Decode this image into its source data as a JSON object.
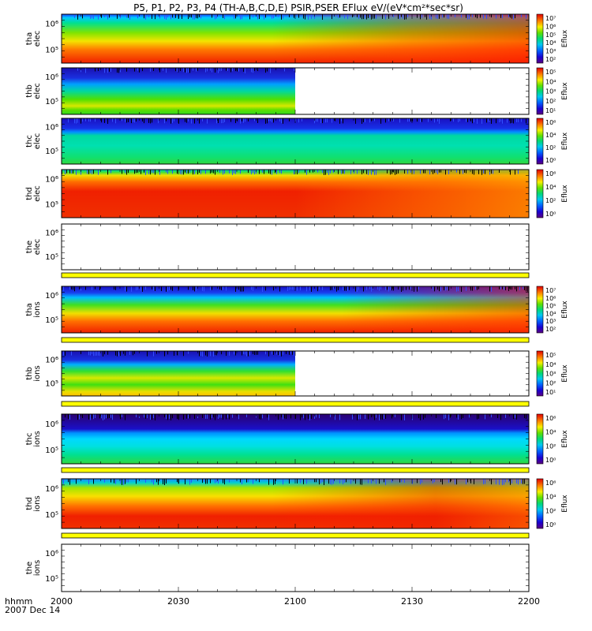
{
  "chart_data": {
    "type": "heatmap",
    "title": "P5, P1, P2, P3, P4 (TH-A,B,C,D,E) PSIR,PSER EFlux eV/(eV*cm²*sec*sr)",
    "x_label_top": "hhmm",
    "x_label_bottom": "2007 Dec 14",
    "x_ticks": [
      "2000",
      "2030",
      "2100",
      "2130",
      "2200"
    ],
    "xlim": [
      "2000",
      "2200"
    ],
    "colorbar_label": "Eflux",
    "panels": [
      {
        "name": "tha elec",
        "label_top": "tha",
        "label_bottom": "elec",
        "ytick_labels": [
          "10⁶",
          "10⁵"
        ],
        "cb_ticks": [
          "10⁷",
          "10⁶",
          "10⁵",
          "10⁴",
          "10³",
          "10²"
        ],
        "data_coverage": [
          0,
          1
        ],
        "has_colorbar": true,
        "state_bar": false
      },
      {
        "name": "thb elec",
        "label_top": "thb",
        "label_bottom": "elec",
        "ytick_labels": [
          "10⁶",
          "10⁵"
        ],
        "cb_ticks": [
          "10⁵",
          "10⁴",
          "10³",
          "10²",
          "10¹"
        ],
        "data_coverage": [
          0,
          0.5
        ],
        "has_colorbar": true,
        "state_bar": false
      },
      {
        "name": "thc elec",
        "label_top": "thc",
        "label_bottom": "elec",
        "ytick_labels": [
          "10⁶",
          "10⁵"
        ],
        "cb_ticks": [
          "10⁶",
          "10⁴",
          "10²",
          "10⁰"
        ],
        "data_coverage": [
          0,
          1
        ],
        "has_colorbar": true,
        "state_bar": false
      },
      {
        "name": "thd elec",
        "label_top": "thd",
        "label_bottom": "elec",
        "ytick_labels": [
          "10⁶",
          "10⁵"
        ],
        "cb_ticks": [
          "10⁶",
          "10⁴",
          "10²",
          "10⁰"
        ],
        "data_coverage": [
          0,
          1
        ],
        "has_colorbar": true,
        "state_bar": false
      },
      {
        "name": "the elec",
        "label_top": "the",
        "label_bottom": "elec",
        "ytick_labels": [
          "10⁶",
          "10⁵"
        ],
        "cb_ticks": [],
        "data_coverage": [
          0,
          0
        ],
        "has_colorbar": false,
        "state_bar": true
      },
      {
        "name": "tha ions",
        "label_top": "tha",
        "label_bottom": "ions",
        "ytick_labels": [
          "10⁶",
          "10⁵"
        ],
        "cb_ticks": [
          "10⁷",
          "10⁶",
          "10⁵",
          "10⁴",
          "10³",
          "10²"
        ],
        "data_coverage": [
          0,
          1
        ],
        "has_colorbar": true,
        "state_bar": true
      },
      {
        "name": "thb ions",
        "label_top": "thb",
        "label_bottom": "ions",
        "ytick_labels": [
          "10⁶",
          "10⁵"
        ],
        "cb_ticks": [
          "10⁵",
          "10⁴",
          "10³",
          "10²",
          "10¹"
        ],
        "data_coverage": [
          0,
          0.5
        ],
        "has_colorbar": true,
        "state_bar": true
      },
      {
        "name": "thc ions",
        "label_top": "thc",
        "label_bottom": "ions",
        "ytick_labels": [
          "10⁶",
          "10⁵"
        ],
        "cb_ticks": [
          "10⁶",
          "10⁴",
          "10²",
          "10⁰"
        ],
        "data_coverage": [
          0,
          1
        ],
        "has_colorbar": true,
        "state_bar": true
      },
      {
        "name": "thd ions",
        "label_top": "thd",
        "label_bottom": "ions",
        "ytick_labels": [
          "10⁶",
          "10⁵"
        ],
        "cb_ticks": [
          "10⁶",
          "10⁴",
          "10²",
          "10⁰"
        ],
        "data_coverage": [
          0,
          1
        ],
        "has_colorbar": true,
        "state_bar": true
      },
      {
        "name": "the ions",
        "label_top": "the",
        "label_bottom": "ions",
        "ytick_labels": [
          "10⁶",
          "10⁵"
        ],
        "cb_ticks": [],
        "data_coverage": [
          0,
          0
        ],
        "has_colorbar": false,
        "state_bar": false
      }
    ]
  }
}
